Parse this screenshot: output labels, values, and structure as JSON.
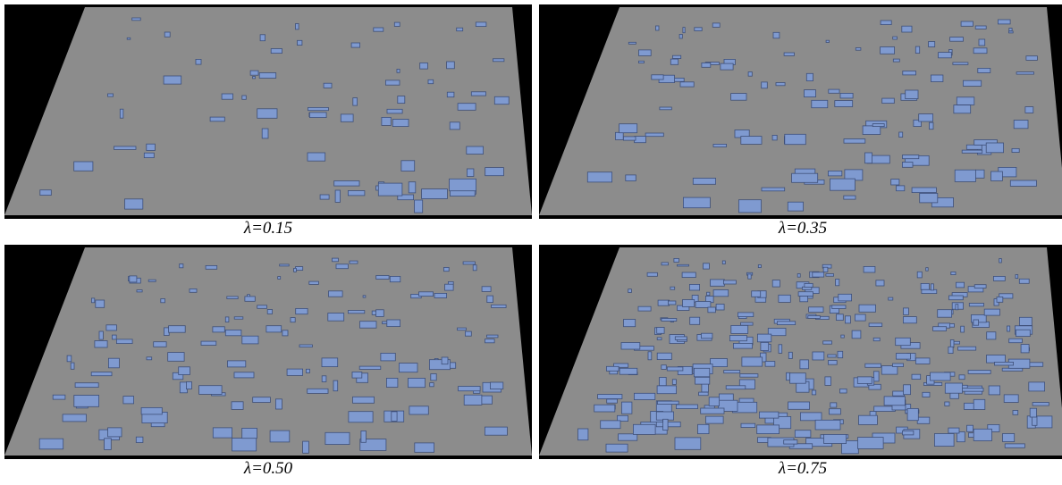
{
  "panels": [
    {
      "caption": "λ=0.15"
    },
    {
      "caption": "λ=0.35"
    },
    {
      "caption": "λ=0.50"
    },
    {
      "caption": "λ=0.75"
    }
  ]
}
